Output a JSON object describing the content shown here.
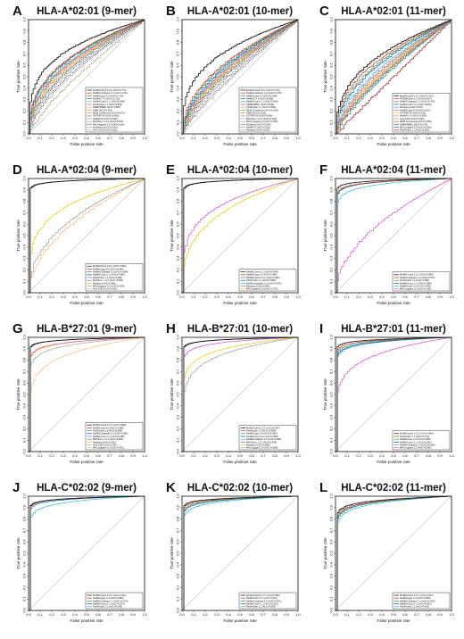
{
  "colors": [
    "#111111",
    "#d62728",
    "#2ca02c",
    "#1f3fbf",
    "#17becf",
    "#d946c8",
    "#e6c700",
    "#9a9a9a",
    "#ff7f0e",
    "#7f7f7f",
    "#8c564b",
    "#008b8b",
    "#b22222",
    "#4682b4",
    "#556b2f"
  ],
  "chart_data": [
    {
      "letter": "A",
      "title": "HLA-A*02:01 (9-mer)",
      "type": "line",
      "xlabel": "False positive rate",
      "ylabel": "True positive rate",
      "xlim": [
        0,
        1
      ],
      "ylim": [
        0,
        1
      ],
      "legend_position": "bottom-right",
      "series": [
        {
          "name": "MixMHCpred 2.0.1 (AUC=0.779)",
          "auc": 0.779,
          "style": "solid"
        },
        {
          "name": "NetMHCstabpan 1.0 (AUC=0.721)",
          "auc": 0.721,
          "style": "solid"
        },
        {
          "name": "NetMHCpan 4.0 (AUC=0.716)",
          "auc": 0.716,
          "style": "solid"
        },
        {
          "name": "NetMHC 4.0 (AUC=0.715)",
          "auc": 0.715,
          "style": "solid"
        },
        {
          "name": "NetMHCcons 1.1 (AUC=0.698)",
          "auc": 0.698,
          "style": "solid"
        },
        {
          "name": "PickPocket 1.1 (AUC=0.691)",
          "auc": 0.691,
          "style": "solid"
        },
        {
          "name": "SMMPMBEC (AUC=0.687)",
          "auc": 0.687,
          "style": "solid"
        },
        {
          "name": "SMM (AUC=0.681)",
          "auc": 0.681,
          "style": "solid"
        },
        {
          "name": "IEDB Consensus (AUC=0.670)",
          "auc": 0.67,
          "style": "solid"
        },
        {
          "name": "SYFPEITHI (AUC=0.655)",
          "auc": 0.655,
          "style": "solid"
        },
        {
          "name": "NetMHCII (AUC=0.648)",
          "auc": 0.648,
          "style": "dashed"
        },
        {
          "name": "MHCflurry 1.2.0 (AUC=0.632)",
          "auc": 0.632,
          "style": "dashed"
        },
        {
          "name": "MHCnuggets 2.0 (AUC=0.616)",
          "auc": 0.616,
          "style": "dashed"
        },
        {
          "name": "HLAthena (AUC=0.604)",
          "auc": 0.604,
          "style": "dashed"
        },
        {
          "name": "HLA-CNN (AUC=0.562)",
          "auc": 0.562,
          "style": "dashed"
        }
      ]
    },
    {
      "letter": "B",
      "title": "HLA-A*02:01 (10-mer)",
      "type": "line",
      "xlabel": "False positive rate",
      "ylabel": "True positive rate",
      "xlim": [
        0,
        1
      ],
      "ylim": [
        0,
        1
      ],
      "legend_position": "bottom-right",
      "series": [
        {
          "name": "MixMHCpred 2.0.1 (AUC=0.753)",
          "auc": 0.753,
          "style": "solid"
        },
        {
          "name": "NetMHCstabpan 1.0 (AUC=0.678)",
          "auc": 0.678,
          "style": "solid"
        },
        {
          "name": "NetMHCpan 4.0 (AUC=0.668)",
          "auc": 0.668,
          "style": "solid"
        },
        {
          "name": "NetMHC 4.0 (AUC=0.655)",
          "auc": 0.655,
          "style": "solid"
        },
        {
          "name": "NetMHCcons 1.1 (AUC=0.645)",
          "auc": 0.645,
          "style": "solid"
        },
        {
          "name": "SMMPMBEC (AUC=0.636)",
          "auc": 0.636,
          "style": "solid"
        },
        {
          "name": "PickPocket 1.1 (AUC=0.630)",
          "auc": 0.63,
          "style": "solid"
        },
        {
          "name": "IEDB Consensus (AUC=0.624)",
          "auc": 0.624,
          "style": "solid"
        },
        {
          "name": "SMM (AUC=0.618)",
          "auc": 0.618,
          "style": "solid"
        },
        {
          "name": "SYFPEITHI (AUC=0.609)",
          "auc": 0.609,
          "style": "solid"
        },
        {
          "name": "MHCflurry 1.2.0 (AUC=0.600)",
          "auc": 0.6,
          "style": "dashed"
        },
        {
          "name": "MHCnuggets 2.0 (AUC=0.593)",
          "auc": 0.593,
          "style": "dashed"
        },
        {
          "name": "HLAthena (AUC=0.578)",
          "auc": 0.578,
          "style": "dashed"
        },
        {
          "name": "NetMHCII (AUC=0.561)",
          "auc": 0.561,
          "style": "dashed"
        },
        {
          "name": "Rankpep (AUC=0.550)",
          "auc": 0.55,
          "style": "dashed"
        }
      ]
    },
    {
      "letter": "C",
      "title": "HLA-A*02:01 (11-mer)",
      "type": "line",
      "xlabel": "False positive rate",
      "ylabel": "True positive rate",
      "xlim": [
        0,
        1
      ],
      "ylim": [
        0,
        1
      ],
      "legend_position": "bottom-right",
      "series": [
        {
          "name": "MixMHCpred 2.0.1 (AUC=0.721)",
          "auc": 0.721,
          "style": "solid"
        },
        {
          "name": "PSSMHCpan 1.0 (AUC=0.697)",
          "auc": 0.697,
          "style": "solid"
        },
        {
          "name": "NetMHCstabpan 1.0 (AUC=0.678)",
          "auc": 0.678,
          "style": "solid"
        },
        {
          "name": "NetMHCcons 1.1 (AUC=0.664)",
          "auc": 0.664,
          "style": "solid"
        },
        {
          "name": "Rankpep (AUC=0.637)",
          "auc": 0.637,
          "style": "solid"
        },
        {
          "name": "NetMHCpan 4.0 (AUC=0.621)",
          "auc": 0.621,
          "style": "solid"
        },
        {
          "name": "SYFPEITHI (AUC=0.611)",
          "auc": 0.611,
          "style": "solid"
        },
        {
          "name": "NetMHC 4.0 (AUC=0.602)",
          "auc": 0.602,
          "style": "solid"
        },
        {
          "name": "HLA-CNN (AUC=0.590)",
          "auc": 0.59,
          "style": "solid"
        },
        {
          "name": "IEDB Consensus (AUC=0.584)",
          "auc": 0.584,
          "style": "solid"
        },
        {
          "name": "SMMPMBEC (AUC=0.576)",
          "auc": 0.576,
          "style": "solid"
        },
        {
          "name": "MHCnuggets 2.0 (AUC=0.563)",
          "auc": 0.563,
          "style": "solid"
        },
        {
          "name": "PickPocket 1.1 (AUC=0.503)",
          "auc": 0.503,
          "style": "solid"
        }
      ]
    },
    {
      "letter": "D",
      "title": "HLA-A*02:04 (9-mer)",
      "type": "line",
      "xlabel": "False positive rate",
      "ylabel": "True positive rate",
      "xlim": [
        0,
        1
      ],
      "ylim": [
        0,
        1
      ],
      "legend_position": "bottom-right",
      "series": [
        {
          "name": "MixMHCpred 2.0.1 (AUC=0.992)",
          "auc": 0.992,
          "style": "solid"
        },
        {
          "name": "NetMHCpan 4.0 (AUC=0.989)",
          "auc": 0.989,
          "style": "solid"
        },
        {
          "name": "NetMHCstabpan 1.0 (AUC=0.988)",
          "auc": 0.988,
          "style": "solid"
        },
        {
          "name": "NetMHCcons 1.1 (AUC=0.986)",
          "auc": 0.986,
          "style": "solid"
        },
        {
          "name": "PickPocket 1.1 (AUC=0.984)",
          "auc": 0.984,
          "style": "solid"
        },
        {
          "name": "MHCflurry 1.2.0 (AUC=0.981)",
          "auc": 0.981,
          "style": "solid"
        },
        {
          "name": "Rankpep (AUC=0.801)",
          "auc": 0.801,
          "style": "solid"
        },
        {
          "name": "MHCnuggets 2.0 (AUC=0.693)",
          "auc": 0.693,
          "style": "solid"
        },
        {
          "name": "HLA-CNN (AUC=0.661)",
          "auc": 0.661,
          "style": "dashed"
        }
      ]
    },
    {
      "letter": "E",
      "title": "HLA-A*02:04 (10-mer)",
      "type": "line",
      "xlabel": "False positive rate",
      "ylabel": "True positive rate",
      "xlim": [
        0,
        1
      ],
      "ylim": [
        0,
        1
      ],
      "legend_position": "bottom-right",
      "series": [
        {
          "name": "NetMHCcons 1.1 (AUC=0.984)",
          "auc": 0.984,
          "style": "solid"
        },
        {
          "name": "NetMHCpan 4.0 (AUC=0.984)",
          "auc": 0.984,
          "style": "solid"
        },
        {
          "name": "MixMHCpred 2.0.1 (AUC=0.982)",
          "auc": 0.982,
          "style": "solid"
        },
        {
          "name": "PickPocket 1.1 (AUC=0.980)",
          "auc": 0.98,
          "style": "solid"
        },
        {
          "name": "NetMHCstabpan 1.0 (AUC=0.979)",
          "auc": 0.979,
          "style": "solid"
        },
        {
          "name": "Rankpep (AUC=0.806)",
          "auc": 0.806,
          "style": "solid"
        },
        {
          "name": "MHCnuggets 2.0 (AUC=0.751)",
          "auc": 0.751,
          "style": "solid"
        }
      ]
    },
    {
      "letter": "F",
      "title": "HLA-A*02:04 (11-mer)",
      "type": "line",
      "xlabel": "False positive rate",
      "ylabel": "True positive rate",
      "xlim": [
        0,
        1
      ],
      "ylim": [
        0,
        1
      ],
      "legend_position": "bottom-right",
      "series": [
        {
          "name": "MixMHCpred 2.0.1 (AUC=0.985)",
          "auc": 0.985,
          "style": "solid"
        },
        {
          "name": "NetMHCstabpan 1.0 (AUC=0.971)",
          "auc": 0.971,
          "style": "solid"
        },
        {
          "name": "PickPocket 1.1 (AUC=0.969)",
          "auc": 0.969,
          "style": "solid"
        },
        {
          "name": "NetMHCcons 1.1 (AUC=0.968)",
          "auc": 0.968,
          "style": "solid"
        },
        {
          "name": "NetMHCpan 4.0 (AUC=0.948)",
          "auc": 0.948,
          "style": "solid"
        },
        {
          "name": "MHCnuggets 2.0 (AUC=0.662)",
          "auc": 0.662,
          "style": "solid"
        }
      ]
    },
    {
      "letter": "G",
      "title": "HLA-B*27:01 (9-mer)",
      "type": "line",
      "xlabel": "False positive rate",
      "ylabel": "True positive rate",
      "xlim": [
        0,
        1
      ],
      "ylim": [
        0,
        1
      ],
      "legend_position": "bottom-right",
      "series": [
        {
          "name": "MixMHCpred 2.0.1 (AUC=0.989)",
          "auc": 0.989,
          "style": "solid"
        },
        {
          "name": "NetMHCpan 4.0 (AUC=0.989)",
          "auc": 0.989,
          "style": "solid"
        },
        {
          "name": "PickPocket 1.1 (AUC=0.986)",
          "auc": 0.986,
          "style": "solid"
        },
        {
          "name": "NetMHCstabpan 1.0 (AUC=0.986)",
          "auc": 0.986,
          "style": "solid"
        },
        {
          "name": "NetMHCcons 1.1 (AUC=0.985)",
          "auc": 0.985,
          "style": "solid"
        },
        {
          "name": "MHCflurry 1.2.0 (AUC=0.960)",
          "auc": 0.96,
          "style": "solid"
        },
        {
          "name": "Rankpep (AUC=0.957)",
          "auc": 0.957,
          "style": "solid"
        },
        {
          "name": "HLA-CNN (AUC=0.937)",
          "auc": 0.937,
          "style": "solid"
        },
        {
          "name": "MHCnuggets 2.0 (AUC=0.871)",
          "auc": 0.871,
          "style": "dashed"
        }
      ]
    },
    {
      "letter": "H",
      "title": "HLA-B*27:01 (10-mer)",
      "type": "line",
      "xlabel": "False positive rate",
      "ylabel": "True positive rate",
      "xlim": [
        0,
        1
      ],
      "ylim": [
        0,
        1
      ],
      "legend_position": "bottom-right",
      "series": [
        {
          "name": "MixMHCpred 2.0.1 (AUC=0.987)",
          "auc": 0.987,
          "style": "solid"
        },
        {
          "name": "PickPocket 1.1 (AUC=0.984)",
          "auc": 0.984,
          "style": "solid"
        },
        {
          "name": "NetMHCpan 4.0 (AUC=0.983)",
          "auc": 0.983,
          "style": "solid"
        },
        {
          "name": "NetMHCcons 1.1 (AUC=0.983)",
          "auc": 0.983,
          "style": "solid"
        },
        {
          "name": "NetMHCstabpan 1.0 (AUC=0.980)",
          "auc": 0.98,
          "style": "solid"
        },
        {
          "name": "MHCflurry 1.2.0 (AUC=0.958)",
          "auc": 0.958,
          "style": "solid"
        },
        {
          "name": "Rankpep (AUC=0.906)",
          "auc": 0.906,
          "style": "solid"
        },
        {
          "name": "MHCnuggets 2.0 (AUC=0.868)",
          "auc": 0.868,
          "style": "solid"
        }
      ]
    },
    {
      "letter": "I",
      "title": "HLA-B*27:01 (11-mer)",
      "type": "line",
      "xlabel": "False positive rate",
      "ylabel": "True positive rate",
      "xlim": [
        0,
        1
      ],
      "ylim": [
        0,
        1
      ],
      "legend_position": "bottom-right",
      "series": [
        {
          "name": "MixMHCpred 2.0.1 (AUC=0.984)",
          "auc": 0.984,
          "style": "solid"
        },
        {
          "name": "PickPocket 1.1 (AUC=0.974)",
          "auc": 0.974,
          "style": "solid"
        },
        {
          "name": "NetMHCpan 4.0 (AUC=0.968)",
          "auc": 0.968,
          "style": "solid"
        },
        {
          "name": "NetMHCcons 1.1 (AUC=0.962)",
          "auc": 0.962,
          "style": "solid"
        },
        {
          "name": "NetMHCstabpan 1.0 (AUC=0.958)",
          "auc": 0.958,
          "style": "solid"
        },
        {
          "name": "MHCnuggets 2.0 (AUC=0.865)",
          "auc": 0.865,
          "style": "solid"
        }
      ]
    },
    {
      "letter": "J",
      "title": "HLA-C*02:02 (9-mer)",
      "type": "line",
      "xlabel": "False positive rate",
      "ylabel": "True positive rate",
      "xlim": [
        0,
        1
      ],
      "ylim": [
        0,
        1
      ],
      "legend_position": "bottom-right",
      "series": [
        {
          "name": "MixMHCpred 2.0.1 (AUC=0.991)",
          "auc": 0.991,
          "style": "solid"
        },
        {
          "name": "NetMHCpan 4.0 (AUC=0.989)",
          "auc": 0.989,
          "style": "solid"
        },
        {
          "name": "NetMHCstabpan 1.0 (AUC=0.979)",
          "auc": 0.979,
          "style": "solid"
        },
        {
          "name": "NetMHCcons 1.1 (AUC=0.974)",
          "auc": 0.974,
          "style": "solid"
        },
        {
          "name": "PickPocket 1.1 (AUC=0.953)",
          "auc": 0.953,
          "style": "solid"
        }
      ]
    },
    {
      "letter": "K",
      "title": "HLA-C*02:02 (10-mer)",
      "type": "line",
      "xlabel": "False positive rate",
      "ylabel": "True positive rate",
      "xlim": [
        0,
        1
      ],
      "ylim": [
        0,
        1
      ],
      "legend_position": "bottom-right",
      "series": [
        {
          "name": "MixMHCpred 2.0.1 (AUC=0.983)",
          "auc": 0.983,
          "style": "solid"
        },
        {
          "name": "NetMHCpan 4.0 (AUC=0.976)",
          "auc": 0.976,
          "style": "solid"
        },
        {
          "name": "NetMHCstabpan 1.0 (AUC=0.971)",
          "auc": 0.971,
          "style": "solid"
        },
        {
          "name": "NetMHCcons 1.1 (AUC=0.967)",
          "auc": 0.967,
          "style": "solid"
        },
        {
          "name": "PickPocket 1.1 (AUC=0.957)",
          "auc": 0.957,
          "style": "solid"
        }
      ]
    },
    {
      "letter": "L",
      "title": "HLA-C*02:02 (11-mer)",
      "type": "line",
      "xlabel": "False positive rate",
      "ylabel": "True positive rate",
      "xlim": [
        0,
        1
      ],
      "ylim": [
        0,
        1
      ],
      "legend_position": "bottom-right",
      "series": [
        {
          "name": "MixMHCpred 2.0.1 (AUC=0.964)",
          "auc": 0.964,
          "style": "solid"
        },
        {
          "name": "NetMHCpan 4.0 (AUC=0.958)",
          "auc": 0.958,
          "style": "solid"
        },
        {
          "name": "NetMHCstabpan 1.0 (AUC=0.953)",
          "auc": 0.953,
          "style": "solid"
        },
        {
          "name": "NetMHCcons 1.1 (AUC=0.951)",
          "auc": 0.951,
          "style": "solid"
        },
        {
          "name": "PickPocket 1.1 (AUC=0.941)",
          "auc": 0.941,
          "style": "solid"
        }
      ]
    }
  ],
  "ticks": [
    "0.0",
    "0.1",
    "0.2",
    "0.3",
    "0.4",
    "0.5",
    "0.6",
    "0.7",
    "0.8",
    "0.9",
    "1.0"
  ]
}
